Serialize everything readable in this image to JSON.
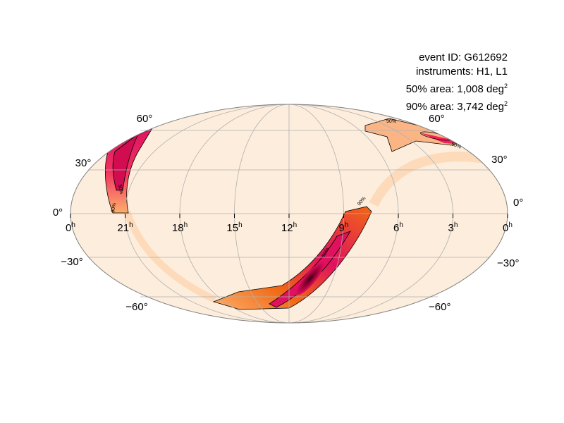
{
  "info": {
    "event_id": "event ID: G612692",
    "instruments": "instruments: H1, L1",
    "area50_prefix": "50% area: 1,008 deg",
    "area90_prefix": "90% area: 3,742 deg",
    "superscript": "2"
  },
  "map": {
    "projection": "Mollweide (astro hours)",
    "ra_ticks": [
      "0",
      "21",
      "18",
      "15",
      "12",
      "9",
      "6",
      "3",
      "0"
    ],
    "ra_unit": "h",
    "dec_labels_left": [
      "60°",
      "30°",
      "0°",
      "−30°",
      "−60°"
    ],
    "dec_labels_right": [
      "60°",
      "30°",
      "0°",
      "−30°",
      "−60°"
    ],
    "contour_labels": {
      "c50": "50%",
      "c90": "90%"
    },
    "colors": {
      "background": "#fdeddc",
      "low": "#fdd0a2",
      "mid": "#f16913",
      "high": "#e0115f",
      "peak": "#3b0012"
    }
  }
}
